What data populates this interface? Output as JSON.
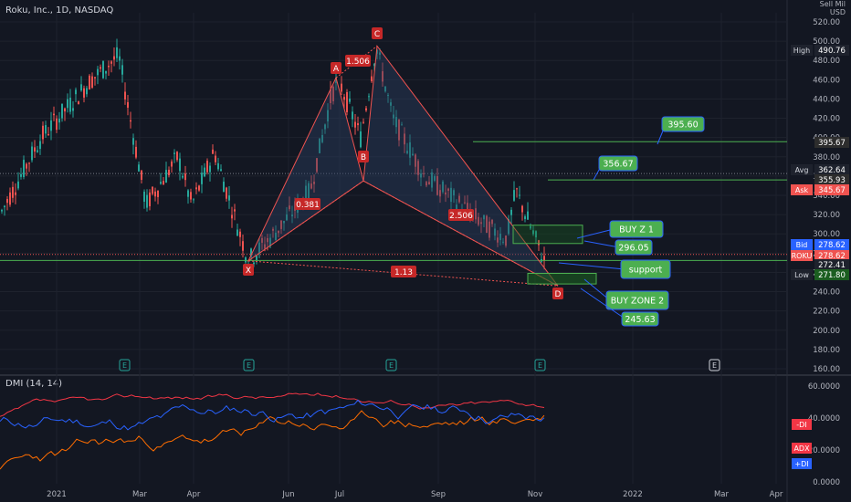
{
  "header": {
    "title": "Roku, Inc., 1D, NASDAQ",
    "axis_unit_top": "Sell Mil",
    "axis_unit_bottom": "USD"
  },
  "indicator": {
    "label": "DMI (14, 14)"
  },
  "colors": {
    "bg": "#131722",
    "up": "#26a69a",
    "down": "#ef5350",
    "grid": "#1e222d",
    "support_line": "#4caf50",
    "pattern_fill": "#2a3f5f",
    "pattern_line": "#ef5350",
    "callout": "#4caf50",
    "plus_di": "#2962ff",
    "minus_di": "#ff6d00",
    "adx": "#f23645"
  },
  "price_axis": {
    "ticks": [
      "520.00",
      "500.00",
      "480.00",
      "460.00",
      "440.00",
      "420.00",
      "400.00",
      "380.00",
      "360.00",
      "340.00",
      "320.00",
      "300.00",
      "280.00",
      "260.00",
      "240.00",
      "220.00",
      "200.00",
      "180.00",
      "160.00"
    ]
  },
  "dmi_axis": {
    "ticks": [
      "60.0000",
      "40.0000",
      "20.0000",
      "0.0000"
    ]
  },
  "x_axis": {
    "ticks": [
      "2021",
      "Mar",
      "Apr",
      "Jun",
      "Jul",
      "Sep",
      "Nov",
      "2022",
      "Mar",
      "Apr"
    ]
  },
  "price_tags": [
    {
      "label": "High",
      "value": "490.76",
      "color": "#1e222d",
      "text_color": "#d1d4dc"
    },
    {
      "label": "",
      "value": "395.67",
      "color": "#2d2d2d",
      "text_color": "#ffffff"
    },
    {
      "label": "Avg",
      "value": "362.64",
      "color": "#1e222d",
      "text_color": "#d1d4dc"
    },
    {
      "label": "",
      "value": "355.93",
      "color": "#2d2d2d",
      "text_color": "#ffffff"
    },
    {
      "label": "Ask",
      "value": "345.67",
      "color": "#ef5350",
      "text_color": "#ffffff"
    },
    {
      "label": "Bid",
      "value": "278.62",
      "color": "#2962ff",
      "text_color": "#ffffff"
    },
    {
      "label": "ROKU",
      "value": "278.62",
      "color": "#ef5350",
      "text_color": "#ffffff"
    },
    {
      "label": "",
      "value": "272.41",
      "color": "#2d2d2d",
      "text_color": "#ffffff"
    },
    {
      "label": "Low",
      "value": "271.80",
      "color": "#1e222d",
      "text_color": "#d1d4dc"
    }
  ],
  "dmi_tags": [
    {
      "label": "-DI",
      "color": "#f23645"
    },
    {
      "label": "ADX",
      "color": "#f23645"
    },
    {
      "label": "+DI",
      "color": "#2962ff"
    }
  ],
  "pattern": {
    "points": [
      {
        "name": "X",
        "price": 272
      },
      {
        "name": "A",
        "price": 462
      },
      {
        "name": "B",
        "price": 355
      },
      {
        "name": "C",
        "price": 495
      },
      {
        "name": "D",
        "price": 246
      }
    ],
    "ratios": [
      "1.506",
      "0.381",
      "2.506",
      "1.13"
    ]
  },
  "callouts": [
    {
      "label": "395.60",
      "price": 395.6
    },
    {
      "label": "356.67",
      "price": 356.67
    },
    {
      "label": "BUY Z 1",
      "price": 300
    },
    {
      "label": "296.05",
      "price": 296.05
    },
    {
      "label": "support",
      "price": 272.4
    },
    {
      "label": "BUY ZONE 2",
      "price": 255
    },
    {
      "label": "245.63",
      "price": 245.63
    }
  ],
  "earnings_markers": [
    "E",
    "E",
    "E",
    "E",
    "E"
  ],
  "chart_data": {
    "type": "line",
    "title": "Roku, Inc., 1D, NASDAQ",
    "ylim": [
      160,
      520
    ],
    "series": [
      {
        "name": "ROKU",
        "x": [
          "2021-01-04",
          "2021-01-25",
          "2021-02-08",
          "2021-02-16",
          "2021-03-08",
          "2021-03-22",
          "2021-04-07",
          "2021-04-26",
          "2021-05-12",
          "2021-05-24",
          "2021-06-14",
          "2021-06-28",
          "2021-07-01",
          "2021-07-12",
          "2021-07-16",
          "2021-07-27",
          "2021-08-13",
          "2021-09-01",
          "2021-09-20",
          "2021-10-04",
          "2021-10-20",
          "2021-11-04"
        ],
        "values": [
          320,
          400,
          460,
          485,
          330,
          380,
          330,
          385,
          272,
          300,
          345,
          440,
          462,
          400,
          495,
          420,
          360,
          330,
          310,
          295,
          345,
          272
        ]
      }
    ],
    "horizontal_levels": [
      395.67,
      355.93,
      272.41
    ]
  }
}
